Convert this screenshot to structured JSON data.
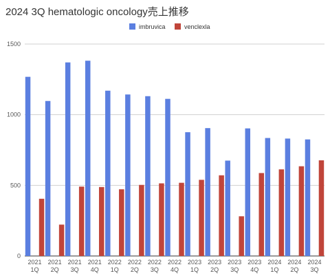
{
  "chart_data": {
    "type": "bar",
    "title": "2024 3Q hematologic oncology売上推移",
    "xlabel": "",
    "ylabel": "",
    "ylim": [
      0,
      1500
    ],
    "yticks": [
      0,
      500,
      1000,
      1500
    ],
    "grid": true,
    "legend_position": "top-center",
    "categories": [
      [
        "2021",
        "1Q"
      ],
      [
        "2021",
        "2Q"
      ],
      [
        "2021",
        "3Q"
      ],
      [
        "2021",
        "4Q"
      ],
      [
        "2022",
        "1Q"
      ],
      [
        "2022",
        "2Q"
      ],
      [
        "2022",
        "3Q"
      ],
      [
        "2022",
        "4Q"
      ],
      [
        "2023",
        "1Q"
      ],
      [
        "2023",
        "2Q"
      ],
      [
        "2023",
        "3Q"
      ],
      [
        "2023",
        "4Q"
      ],
      [
        "2024",
        "1Q"
      ],
      [
        "2024",
        "2Q"
      ],
      [
        "2024",
        "3Q"
      ]
    ],
    "series": [
      {
        "name": "imbruvica",
        "color": "#5b7fe0",
        "values": [
          1268,
          1097,
          1370,
          1382,
          1170,
          1143,
          1131,
          1112,
          876,
          905,
          675,
          903,
          835,
          831,
          825
        ]
      },
      {
        "name": "venclexla",
        "color": "#c0453a",
        "values": [
          405,
          222,
          491,
          488,
          472,
          503,
          514,
          518,
          539,
          571,
          281,
          587,
          613,
          635,
          677
        ]
      }
    ]
  }
}
